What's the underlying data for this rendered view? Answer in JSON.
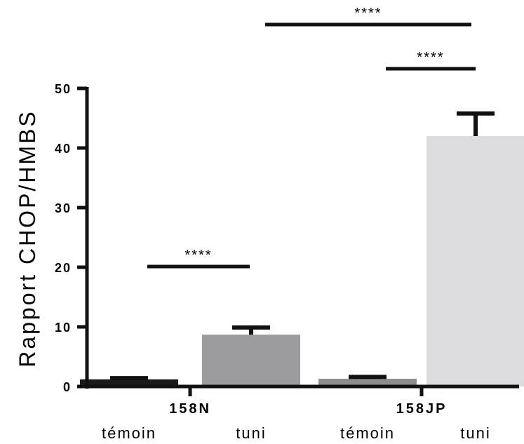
{
  "chart_data": {
    "type": "bar",
    "ylabel": "Rapport CHOP/HMBS",
    "ylim": [
      0,
      50
    ],
    "yticks": [
      "0",
      "10",
      "20",
      "30",
      "40",
      "50"
    ],
    "groups": [
      "158N",
      "158JP"
    ],
    "categories": [
      "témoin",
      "tuni",
      "témoin",
      "tuni"
    ],
    "values": [
      1.2,
      8.7,
      1.3,
      42.0
    ],
    "errors": [
      0.2,
      1.2,
      0.3,
      3.8
    ],
    "colors": [
      "#1a1a1a",
      "#9c9c9e",
      "#8e8e90",
      "#dcdcde"
    ],
    "significance": [
      {
        "label": "****",
        "from": 0,
        "to": 1,
        "level": 20
      },
      {
        "label": "****",
        "from": 2,
        "to": 3,
        "level": 53
      },
      {
        "label": "****",
        "from": 1,
        "to": 3,
        "level": 60
      }
    ]
  }
}
